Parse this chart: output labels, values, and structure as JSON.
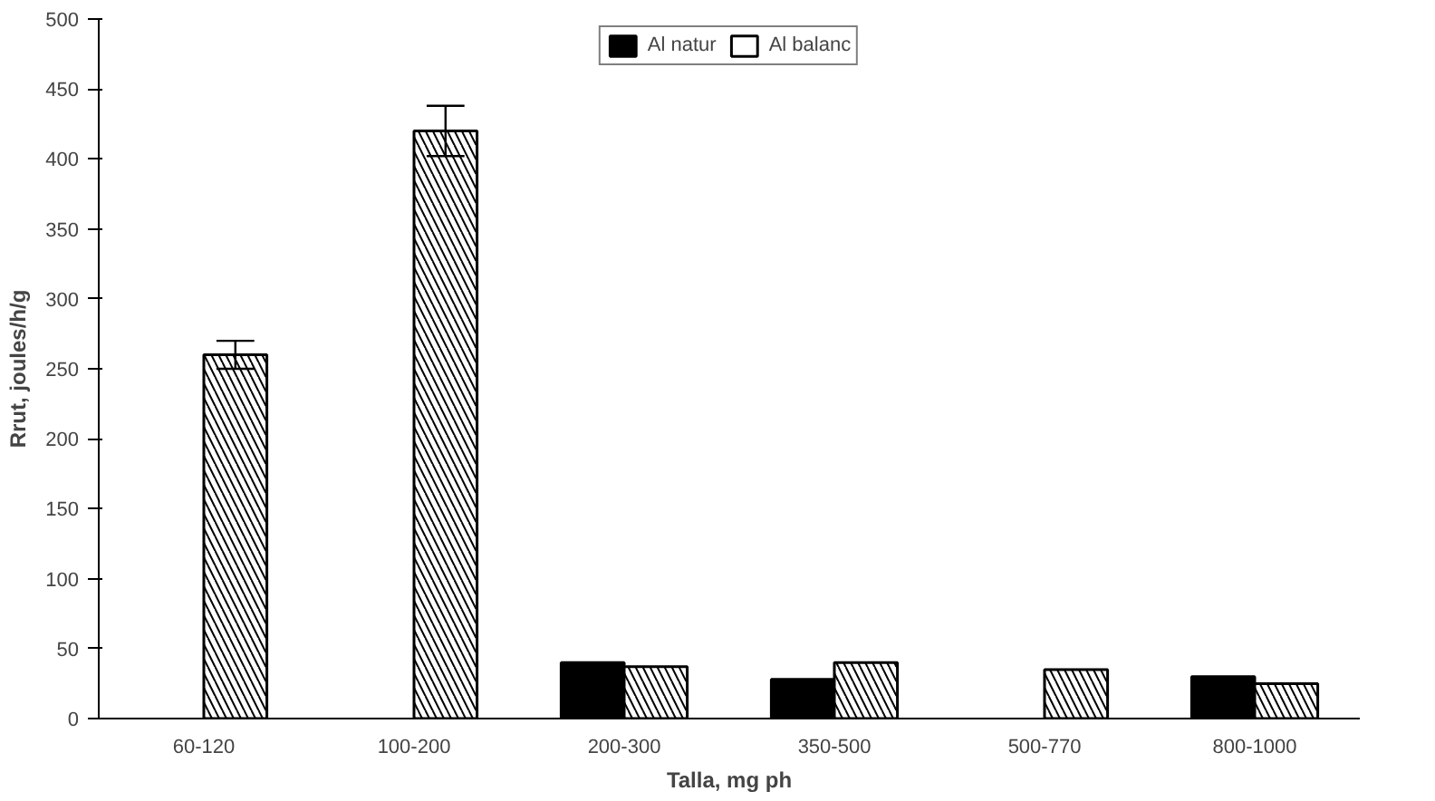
{
  "chart_data": {
    "type": "bar",
    "xlabel": "Talla, mg ph",
    "ylabel": "Rrut, joules/h/g",
    "categories": [
      "60-120",
      "100-200",
      "200-300",
      "350-500",
      "500-770",
      "800-1000"
    ],
    "series": [
      {
        "name": "Al natur",
        "color": "#000000",
        "values": [
          null,
          null,
          40,
          28,
          null,
          30
        ]
      },
      {
        "name": "Al balanc",
        "color": "#ffffff",
        "values": [
          260,
          420,
          37,
          40,
          35,
          25
        ],
        "errors": [
          10,
          18,
          null,
          null,
          null,
          null
        ]
      }
    ],
    "ylim": [
      0,
      500
    ],
    "yticks": [
      0,
      50,
      100,
      150,
      200,
      250,
      300,
      350,
      400,
      450,
      500
    ],
    "grid": false,
    "legend": "top"
  }
}
